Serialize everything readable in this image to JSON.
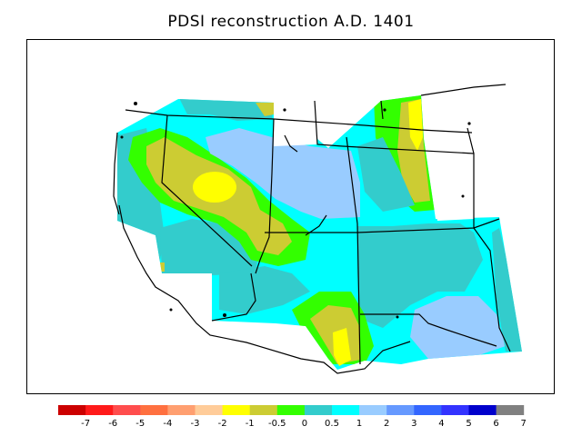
{
  "title": "PDSI reconstruction A.D. 1401",
  "legend": {
    "colors": [
      "#cc0000",
      "#ff1a1a",
      "#ff4d4d",
      "#ff7040",
      "#ff9f70",
      "#ffcc99",
      "#ffff00",
      "#cccc33",
      "#33ff00",
      "#33cccc",
      "#00ffff",
      "#99ccff",
      "#6699ff",
      "#3366ff",
      "#3333ff",
      "#0000cc",
      "#808080"
    ],
    "labels": [
      "-7",
      "-6",
      "-5",
      "-4",
      "-3",
      "-2",
      "-1",
      "-0.5",
      "0",
      "0.5",
      "1",
      "2",
      "3",
      "4",
      "5",
      "6",
      "7"
    ]
  }
}
